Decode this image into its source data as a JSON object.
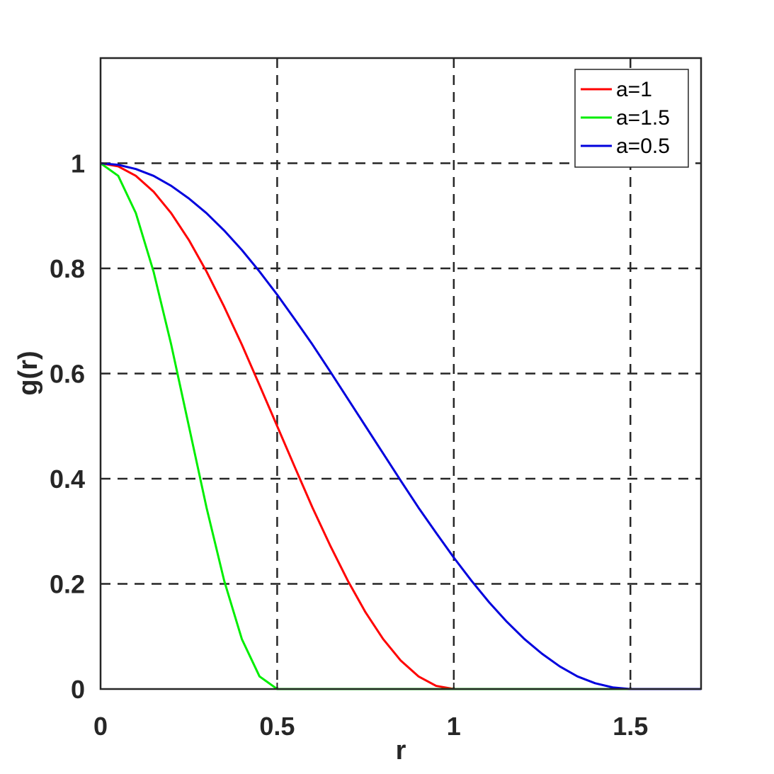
{
  "chart_data": {
    "type": "line",
    "title": "",
    "xlabel": "r",
    "ylabel": "g(r)",
    "xlim": [
      0,
      1.7
    ],
    "ylim": [
      0,
      1.2
    ],
    "xticks": [
      0,
      0.5,
      1,
      1.5
    ],
    "xtick_labels": [
      "0",
      "0.5",
      "1",
      "1.5"
    ],
    "yticks": [
      0,
      0.2,
      0.4,
      0.6,
      0.8,
      1
    ],
    "ytick_labels": [
      "0",
      "0.2",
      "0.4",
      "0.6",
      "0.8",
      "1"
    ],
    "grid": true,
    "grid_style": "dashed",
    "legend_position": "top-right",
    "x": [
      0,
      0.05,
      0.1,
      0.15,
      0.2,
      0.25,
      0.3,
      0.35,
      0.4,
      0.45,
      0.5,
      0.55,
      0.6,
      0.65,
      0.7,
      0.75,
      0.8,
      0.85,
      0.9,
      0.95,
      1.0,
      1.05,
      1.1,
      1.15,
      1.2,
      1.25,
      1.3,
      1.35,
      1.4,
      1.45,
      1.5,
      1.55,
      1.6,
      1.65,
      1.7
    ],
    "series": [
      {
        "name": "a=1",
        "color": "#ff0000",
        "values": [
          1.0,
          0.994,
          0.976,
          0.946,
          0.905,
          0.854,
          0.794,
          0.727,
          0.655,
          0.578,
          0.5,
          0.422,
          0.345,
          0.273,
          0.206,
          0.146,
          0.095,
          0.054,
          0.024,
          0.006,
          0.0,
          0.0,
          0.0,
          0.0,
          0.0,
          0.0,
          0.0,
          0.0,
          0.0,
          0.0,
          0.0,
          0.0,
          0.0,
          0.0,
          0.0
        ]
      },
      {
        "name": "a=1.5",
        "color": "#00ee00",
        "values": [
          1.0,
          0.976,
          0.905,
          0.794,
          0.655,
          0.5,
          0.345,
          0.206,
          0.095,
          0.024,
          0.0,
          0.0,
          0.0,
          0.0,
          0.0,
          0.0,
          0.0,
          0.0,
          0.0,
          0.0,
          0.0,
          0.0,
          0.0,
          0.0,
          0.0,
          0.0,
          0.0,
          0.0,
          0.0,
          0.0,
          0.0,
          0.0,
          0.0,
          0.0,
          0.0
        ]
      },
      {
        "name": "a=0.5",
        "color": "#0000dd",
        "values": [
          1.0,
          0.997,
          0.989,
          0.976,
          0.957,
          0.933,
          0.905,
          0.872,
          0.835,
          0.794,
          0.75,
          0.703,
          0.655,
          0.604,
          0.552,
          0.5,
          0.448,
          0.396,
          0.345,
          0.297,
          0.25,
          0.206,
          0.165,
          0.128,
          0.095,
          0.067,
          0.043,
          0.024,
          0.011,
          0.003,
          0.0,
          0.0,
          0.0,
          0.0,
          0.0
        ]
      }
    ]
  }
}
